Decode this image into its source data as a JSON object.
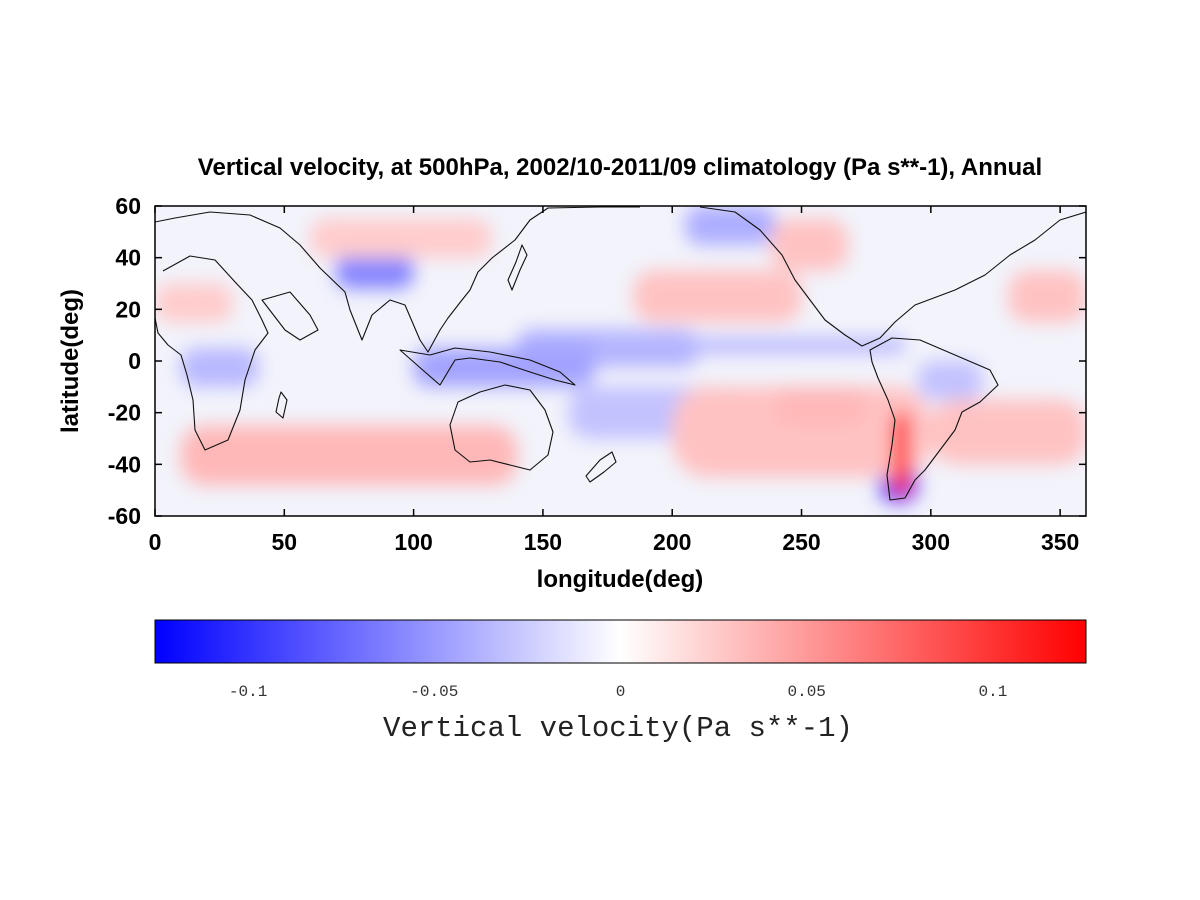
{
  "chart_data": {
    "type": "heatmap",
    "title": "Vertical velocity, at 500hPa, 2002/10-2011/09 climatology (Pa s**-1), Annual",
    "xlabel": "longitude(deg)",
    "ylabel": "latitude(deg)",
    "xlim": [
      0,
      360
    ],
    "ylim": [
      -60,
      60
    ],
    "x_ticks": [
      "0",
      "50",
      "100",
      "150",
      "200",
      "250",
      "300",
      "350"
    ],
    "y_ticks": [
      "60",
      "40",
      "20",
      "0",
      "-20",
      "-40",
      "-60"
    ],
    "colorbar": {
      "label": "Vertical velocity(Pa s**-1)",
      "range": [
        -0.125,
        0.125
      ],
      "ticks": [
        "-0.1",
        "-0.05",
        "0",
        "0.05",
        "0.1"
      ],
      "colors": {
        "negative": "#0000ff",
        "zero": "#ffffff",
        "positive": "#ff0000"
      }
    },
    "field_features": [
      {
        "lon": [
          140,
          210
        ],
        "lat": [
          -2,
          12
        ],
        "value": -0.04
      },
      {
        "lon": [
          100,
          170
        ],
        "lat": [
          -10,
          5
        ],
        "value": -0.045
      },
      {
        "lon": [
          170,
          290
        ],
        "lat": [
          3,
          9
        ],
        "value": -0.035
      },
      {
        "lon": [
          160,
          230
        ],
        "lat": [
          -30,
          -10
        ],
        "value": -0.03
      },
      {
        "lon": [
          10,
          40
        ],
        "lat": [
          -10,
          5
        ],
        "value": -0.035
      },
      {
        "lon": [
          295,
          320
        ],
        "lat": [
          -15,
          0
        ],
        "value": -0.03
      },
      {
        "lon": [
          70,
          100
        ],
        "lat": [
          28,
          42
        ],
        "value": -0.06
      },
      {
        "lon": [
          205,
          240
        ],
        "lat": [
          45,
          60
        ],
        "value": -0.04
      },
      {
        "lon": [
          280,
          295
        ],
        "lat": [
          -55,
          -25
        ],
        "value": -0.09
      },
      {
        "lon": [
          185,
          250
        ],
        "lat": [
          15,
          35
        ],
        "value": 0.03
      },
      {
        "lon": [
          330,
          360
        ],
        "lat": [
          15,
          35
        ],
        "value": 0.03
      },
      {
        "lon": [
          0,
          30
        ],
        "lat": [
          15,
          30
        ],
        "value": 0.025
      },
      {
        "lon": [
          10,
          140
        ],
        "lat": [
          -48,
          -25
        ],
        "value": 0.035
      },
      {
        "lon": [
          200,
          300
        ],
        "lat": [
          -45,
          -10
        ],
        "value": 0.03
      },
      {
        "lon": [
          300,
          360
        ],
        "lat": [
          -40,
          -15
        ],
        "value": 0.03
      },
      {
        "lon": [
          240,
          275
        ],
        "lat": [
          -25,
          -10
        ],
        "value": 0.035
      },
      {
        "lon": [
          60,
          130
        ],
        "lat": [
          40,
          55
        ],
        "value": 0.025
      },
      {
        "lon": [
          238,
          268
        ],
        "lat": [
          35,
          55
        ],
        "value": 0.03
      },
      {
        "lon": [
          285,
          292
        ],
        "lat": [
          -52,
          -20
        ],
        "value": 0.1
      }
    ]
  }
}
